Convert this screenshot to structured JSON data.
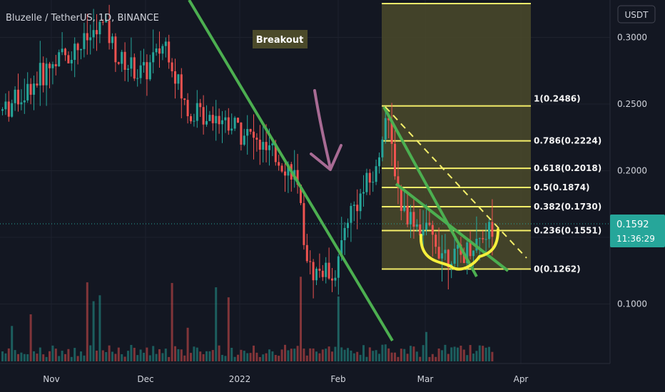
{
  "chart_data": {
    "type": "candlestick",
    "title": "Bluzelle / TetherUS, 1D, BINANCE",
    "currency": "USDT",
    "y_ticks": [
      "0.3000",
      "0.2500",
      "0.2000",
      "0.1000"
    ],
    "y_tick_values": [
      0.3,
      0.25,
      0.2,
      0.1
    ],
    "x_ticks": [
      "Nov",
      "Dec",
      "2022",
      "Feb",
      "Mar",
      "Apr"
    ],
    "last_price": "0.1592",
    "countdown": "11:36:29",
    "annotation": "Breakout",
    "fib_levels": [
      {
        "ratio": 1,
        "value": 0.2486,
        "label": "1(0.2486)"
      },
      {
        "ratio": 0.786,
        "value": 0.2224,
        "label": "0.786(0.2224)"
      },
      {
        "ratio": 0.618,
        "value": 0.2018,
        "label": "0.618(0.2018)"
      },
      {
        "ratio": 0.5,
        "value": 0.1874,
        "label": "0.5(0.1874)"
      },
      {
        "ratio": 0.382,
        "value": 0.173,
        "label": "0.382(0.1730)"
      },
      {
        "ratio": 0.236,
        "value": 0.1551,
        "label": "0.236(0.1551)"
      },
      {
        "ratio": 0,
        "value": 0.1262,
        "label": "0(0.1262)"
      }
    ],
    "colors": {
      "background": "#131722",
      "up": "#26a69a",
      "down": "#ef5350",
      "fib_line": "#f5ef6a",
      "fib_fill": "#4b4a2a",
      "trendline": "#4caf50",
      "arrow": "#a86b94",
      "cup": "#f5ef3c",
      "last_price_bg": "#26a69a"
    }
  }
}
